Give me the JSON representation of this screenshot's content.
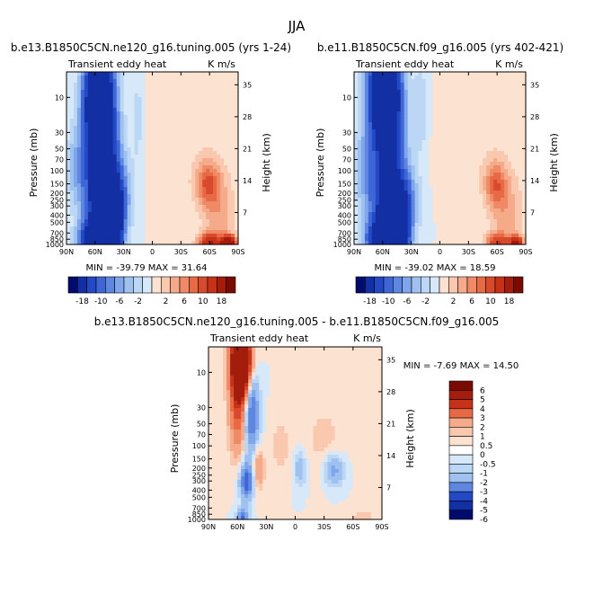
{
  "season": "JJA",
  "colors": {
    "pos": [
      "#FCE3D1",
      "#F9C8AE",
      "#F5AA8A",
      "#EF8A66",
      "#E86A45",
      "#D94A2C",
      "#C53218",
      "#A31C0C",
      "#7A0B03"
    ],
    "neg": [
      "#D7E8F8",
      "#BCD6F5",
      "#9EC1F0",
      "#7FA6EA",
      "#5F87E2",
      "#3F66D7",
      "#2349C6",
      "#1230A4",
      "#000B6E"
    ]
  },
  "chart_data": [
    {
      "id": "panel1",
      "type": "contour",
      "title": "b.e13.B1850C5CN.ne120_g16.tuning.005 (yrs 1-24)",
      "left_label": "Transient eddy heat",
      "right_label": "K m/s",
      "xlabel": "",
      "ylabel": "Pressure (mb)",
      "ylabel_right": "Height (km)",
      "x_ticks": [
        "90N",
        "60N",
        "30N",
        "0",
        "30S",
        "60S",
        "90S"
      ],
      "y_ticks": [
        "10",
        "30",
        "50",
        "70",
        "100",
        "150",
        "200",
        "250",
        "300",
        "400",
        "500",
        "700",
        "850",
        "1000"
      ],
      "y_tick_values": [
        10,
        30,
        50,
        70,
        100,
        150,
        200,
        250,
        300,
        400,
        500,
        700,
        850,
        1000
      ],
      "height_ticks": [
        "35",
        "28",
        "21",
        "14",
        "7"
      ],
      "height_tick_values": [
        35,
        28,
        21,
        14,
        7
      ],
      "ylim": [
        1000,
        4.5
      ],
      "stats": "MIN = -39.79   MAX = 31.64",
      "features": [
        {
          "lat": 56,
          "p": 10,
          "lw": 10,
          "pw": 1.1,
          "v": -38
        },
        {
          "lat": 53,
          "p": 60,
          "lw": 12,
          "pw": 1.2,
          "v": -20
        },
        {
          "lat": 48,
          "p": 250,
          "lw": 13,
          "pw": 0.8,
          "v": -28
        },
        {
          "lat": 57,
          "p": 900,
          "lw": 11,
          "pw": 0.45,
          "v": -40
        },
        {
          "lat": 35,
          "p": 600,
          "lw": 4,
          "pw": 0.8,
          "v": -12
        },
        {
          "lat": -58,
          "p": 150,
          "lw": 9,
          "pw": 0.5,
          "v": 9
        },
        {
          "lat": -70,
          "p": 400,
          "lw": 12,
          "pw": 1.0,
          "v": 5
        },
        {
          "lat": -80,
          "p": 950,
          "lw": 5,
          "pw": 0.15,
          "v": 31
        },
        {
          "lat": -60,
          "p": 950,
          "lw": 8,
          "pw": 0.2,
          "v": 16
        },
        {
          "lat": -30,
          "p": 30,
          "lw": 30,
          "pw": 1.5,
          "v": 1.5
        },
        {
          "lat": 15,
          "p": 20,
          "lw": 5,
          "pw": 1.2,
          "v": -3
        },
        {
          "lat": 80,
          "p": 90,
          "lw": 7,
          "pw": 0.9,
          "v": -5
        }
      ]
    },
    {
      "id": "panel2",
      "type": "contour",
      "title": "b.e11.B1850C5CN.f09_g16.005 (yrs 402-421)",
      "left_label": "Transient eddy heat",
      "right_label": "K m/s",
      "xlabel": "",
      "ylabel": "Pressure (mb)",
      "ylabel_right": "Height (km)",
      "x_ticks": [
        "90N",
        "60N",
        "30N",
        "0",
        "30S",
        "60S",
        "90S"
      ],
      "y_ticks": [
        "10",
        "30",
        "50",
        "70",
        "100",
        "150",
        "200",
        "250",
        "300",
        "400",
        "500",
        "700",
        "850",
        "1000"
      ],
      "y_tick_values": [
        10,
        30,
        50,
        70,
        100,
        150,
        200,
        250,
        300,
        400,
        500,
        700,
        850,
        1000
      ],
      "height_ticks": [
        "35",
        "28",
        "21",
        "14",
        "7"
      ],
      "height_tick_values": [
        35,
        28,
        21,
        14,
        7
      ],
      "ylim": [
        1000,
        4.5
      ],
      "stats": "MIN = -39.02   MAX = 18.59",
      "features": [
        {
          "lat": 58,
          "p": 8,
          "lw": 11,
          "pw": 1.0,
          "v": -39
        },
        {
          "lat": 55,
          "p": 50,
          "lw": 12,
          "pw": 1.1,
          "v": -16
        },
        {
          "lat": 50,
          "p": 280,
          "lw": 14,
          "pw": 0.8,
          "v": -25
        },
        {
          "lat": 58,
          "p": 900,
          "lw": 11,
          "pw": 0.45,
          "v": -37
        },
        {
          "lat": 35,
          "p": 600,
          "lw": 4,
          "pw": 0.8,
          "v": -11
        },
        {
          "lat": -58,
          "p": 150,
          "lw": 8,
          "pw": 0.5,
          "v": 8
        },
        {
          "lat": -70,
          "p": 400,
          "lw": 12,
          "pw": 1.0,
          "v": 5
        },
        {
          "lat": -80,
          "p": 950,
          "lw": 5,
          "pw": 0.15,
          "v": 18
        },
        {
          "lat": -60,
          "p": 950,
          "lw": 8,
          "pw": 0.2,
          "v": 12
        },
        {
          "lat": -30,
          "p": 30,
          "lw": 30,
          "pw": 1.5,
          "v": 1.5
        },
        {
          "lat": 20,
          "p": 15,
          "lw": 6,
          "pw": 1.0,
          "v": -4
        },
        {
          "lat": 80,
          "p": 90,
          "lw": 7,
          "pw": 0.9,
          "v": -5
        }
      ]
    },
    {
      "id": "panel3",
      "type": "contour",
      "title": "b.e13.B1850C5CN.ne120_g16.tuning.005 - b.e11.B1850C5CN.f09_g16.005",
      "left_label": "Transient eddy heat",
      "right_label": "K m/s",
      "xlabel": "",
      "ylabel": "Pressure (mb)",
      "ylabel_right": "Height (km)",
      "x_ticks": [
        "90N",
        "60N",
        "30N",
        "0",
        "30S",
        "60S",
        "90S"
      ],
      "y_ticks": [
        "10",
        "30",
        "50",
        "70",
        "100",
        "150",
        "200",
        "250",
        "300",
        "400",
        "500",
        "700",
        "850",
        "1000"
      ],
      "y_tick_values": [
        10,
        30,
        50,
        70,
        100,
        150,
        200,
        250,
        300,
        400,
        500,
        700,
        850,
        1000
      ],
      "height_ticks": [
        "35",
        "28",
        "21",
        "14",
        "7"
      ],
      "height_tick_values": [
        35,
        28,
        21,
        14,
        7
      ],
      "ylim": [
        1000,
        4.5
      ],
      "stats": "MIN = -7.69   MAX = 14.50",
      "features": [
        {
          "lat": 56,
          "p": 7,
          "lw": 7,
          "pw": 0.7,
          "v": 14.5
        },
        {
          "lat": 60,
          "p": 30,
          "lw": 6,
          "pw": 1.0,
          "v": 4
        },
        {
          "lat": 45,
          "p": 35,
          "lw": 5,
          "pw": 1.0,
          "v": -4.5
        },
        {
          "lat": 40,
          "p": 200,
          "lw": 5,
          "pw": 0.5,
          "v": 2.5
        },
        {
          "lat": 50,
          "p": 300,
          "lw": 5,
          "pw": 0.4,
          "v": -5
        },
        {
          "lat": 55,
          "p": 950,
          "lw": 4,
          "pw": 0.2,
          "v": -4
        },
        {
          "lat": -40,
          "p": 210,
          "lw": 7,
          "pw": 0.35,
          "v": -2.5
        },
        {
          "lat": -5,
          "p": 200,
          "lw": 5,
          "pw": 0.4,
          "v": -1.5
        },
        {
          "lat": 15,
          "p": 100,
          "lw": 7,
          "pw": 0.7,
          "v": 0.8
        },
        {
          "lat": -30,
          "p": 80,
          "lw": 15,
          "pw": 0.8,
          "v": 0.7
        },
        {
          "lat": -70,
          "p": 950,
          "lw": 10,
          "pw": 0.2,
          "v": 0.8
        }
      ],
      "legend": {
        "labels": [
          "6",
          "5",
          "4",
          "3",
          "2",
          "1",
          "0.5",
          "0",
          "-0.5",
          "-1",
          "-2",
          "-3",
          "-4",
          "-5",
          "-6"
        ],
        "levels": [
          -6,
          -5,
          -4,
          -3,
          -2,
          -1,
          -0.5,
          0,
          0.5,
          1,
          2,
          3,
          4,
          5,
          6
        ]
      }
    }
  ],
  "shared_colorbar": {
    "labels": [
      "-18",
      "-10",
      "-6",
      "-2",
      "2",
      "6",
      "10",
      "18"
    ],
    "levels": [
      -18,
      -14,
      -10,
      -8,
      -6,
      -4,
      -2,
      0,
      2,
      4,
      6,
      8,
      10,
      14,
      18
    ]
  }
}
